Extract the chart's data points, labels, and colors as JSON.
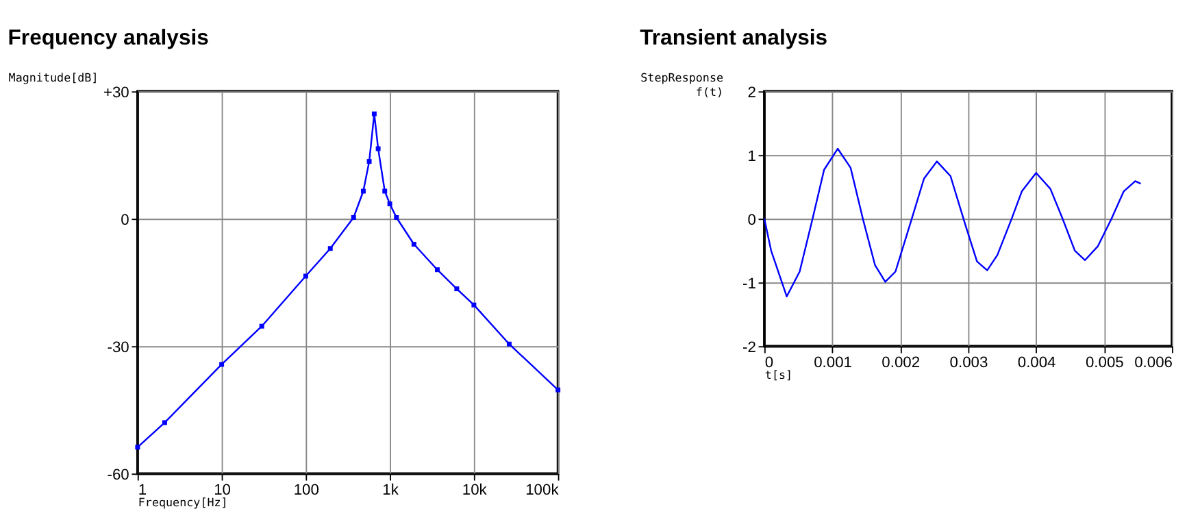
{
  "chart_data": [
    {
      "type": "line",
      "title": "Frequency analysis",
      "xlabel": "Frequency[Hz]",
      "ylabel": "Magnitude[dB]",
      "log": "x",
      "grid": true,
      "marker": "square",
      "xlim": [
        1,
        100000
      ],
      "xticks": [
        1,
        10,
        100,
        {
          "value": 1000,
          "label": "1k"
        },
        {
          "value": 10000,
          "label": "10k"
        },
        {
          "value": 100000,
          "label": "100k"
        }
      ],
      "ylim": [
        -60,
        30
      ],
      "yticks": [
        -60,
        -30,
        0,
        {
          "value": 30,
          "label": "+30"
        }
      ],
      "x": [
        1,
        2.1,
        10,
        30,
        100,
        196,
        371,
        484,
        569,
        653,
        727,
        871,
        1000,
        1199,
        1936,
        3673,
        6255,
        10000,
        26300,
        100000
      ],
      "series": [
        {
          "color": "#0000ff",
          "values": [
            -53.8,
            -48,
            -34.3,
            -25.3,
            -13.5,
            -7,
            0.3,
            6.5,
            13.5,
            24.7,
            16.5,
            6.5,
            3.5,
            0.3,
            -6,
            -12,
            -16.5,
            -20.3,
            -29.5,
            -40.3
          ]
        }
      ]
    },
    {
      "type": "line",
      "title": "Transient analysis",
      "xlabel": "t[s]",
      "ylabel": "StepResponse f(t)",
      "grid": true,
      "xlim": [
        0,
        0.006
      ],
      "xticks": [
        0,
        0.001,
        0.002,
        0.003,
        0.004,
        0.005,
        0.006
      ],
      "ylim": [
        -2,
        2
      ],
      "yticks": [
        -2,
        -1,
        0,
        1,
        2
      ],
      "x": [
        0,
        0.0001,
        0.00033,
        0.00052,
        0.00071,
        0.00088,
        0.00108,
        0.00127,
        0.00145,
        0.00163,
        0.00178,
        0.00193,
        0.00217,
        0.00235,
        0.00254,
        0.00274,
        0.00296,
        0.00313,
        0.00328,
        0.00343,
        0.00364,
        0.00379,
        0.004,
        0.00421,
        0.00439,
        0.00457,
        0.00472,
        0.00491,
        0.00511,
        0.00529,
        0.00546,
        0.00554
      ],
      "series": [
        {
          "color": "#0000ff",
          "values": [
            0,
            -0.5,
            -1.22,
            -0.83,
            0,
            0.77,
            1.1,
            0.8,
            0,
            -0.73,
            -0.99,
            -0.83,
            0,
            0.63,
            0.9,
            0.67,
            -0.1,
            -0.67,
            -0.81,
            -0.57,
            0,
            0.43,
            0.72,
            0.47,
            0,
            -0.5,
            -0.65,
            -0.43,
            0,
            0.43,
            0.59,
            0.55
          ]
        }
      ]
    }
  ]
}
